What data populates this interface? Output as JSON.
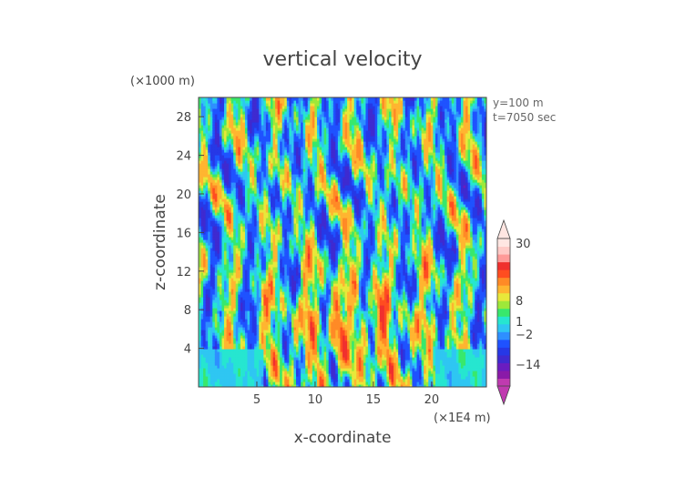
{
  "chart_data": {
    "type": "heatmap",
    "title": "vertical velocity",
    "xlabel": "x-coordinate",
    "ylabel": "z-coordinate",
    "x_unit": "(×1E4 m)",
    "y_unit": "(×1000 m)",
    "annotations": [
      "y=100 m",
      "t=7050 sec"
    ],
    "xlim": [
      0,
      24.7
    ],
    "ylim": [
      0,
      30
    ],
    "x_ticks": [
      5,
      10,
      15,
      20
    ],
    "y_ticks": [
      4,
      8,
      12,
      16,
      20,
      24,
      28
    ],
    "colorbar": {
      "labels": [
        "30",
        "8",
        "1",
        "−2",
        "−14"
      ],
      "levels": [
        -30,
        -20,
        -14,
        -10,
        -6,
        -4,
        -2,
        -1,
        0,
        1,
        2,
        3,
        4,
        6,
        8,
        10,
        15,
        20,
        30
      ],
      "colors": [
        "#c03ab0",
        "#8a1aa8",
        "#6a1cc0",
        "#3f2ad0",
        "#2638e6",
        "#1f52ff",
        "#2e8fff",
        "#2fc6f2",
        "#26e6d0",
        "#38e86c",
        "#9ee83a",
        "#e8e83a",
        "#ffb530",
        "#ff8a26",
        "#ff4d20",
        "#f0302e",
        "#ff9a98",
        "#ffcac6",
        "#ffe6e2"
      ]
    },
    "grid": false,
    "legend": "colorbar right"
  }
}
